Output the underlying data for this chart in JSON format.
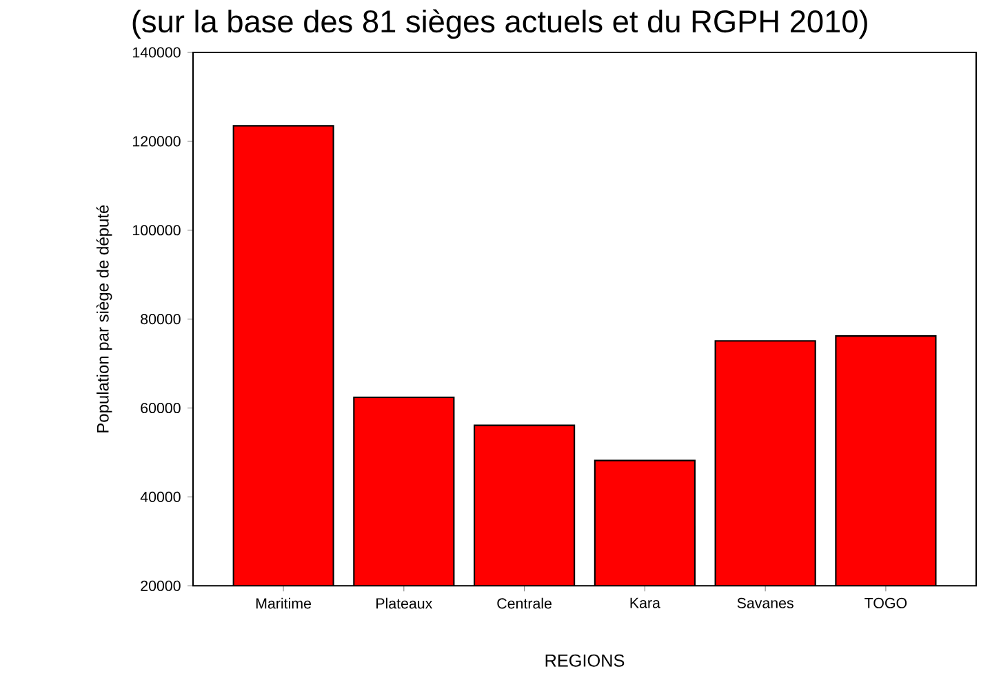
{
  "chart_data": {
    "type": "bar",
    "title": "(sur la base des 81 sièges actuels et du RGPH 2010)",
    "xlabel": "REGIONS",
    "ylabel": "Population par siège de député",
    "categories": [
      "Maritime",
      "Plateaux",
      "Centrale",
      "Kara",
      "Savanes",
      "TOGO"
    ],
    "values": [
      123500,
      62400,
      56100,
      48200,
      75100,
      76200
    ],
    "color": "#ff0000",
    "ylim": [
      20000,
      140000
    ],
    "yticks": [
      20000,
      40000,
      60000,
      80000,
      100000,
      120000,
      140000
    ]
  }
}
